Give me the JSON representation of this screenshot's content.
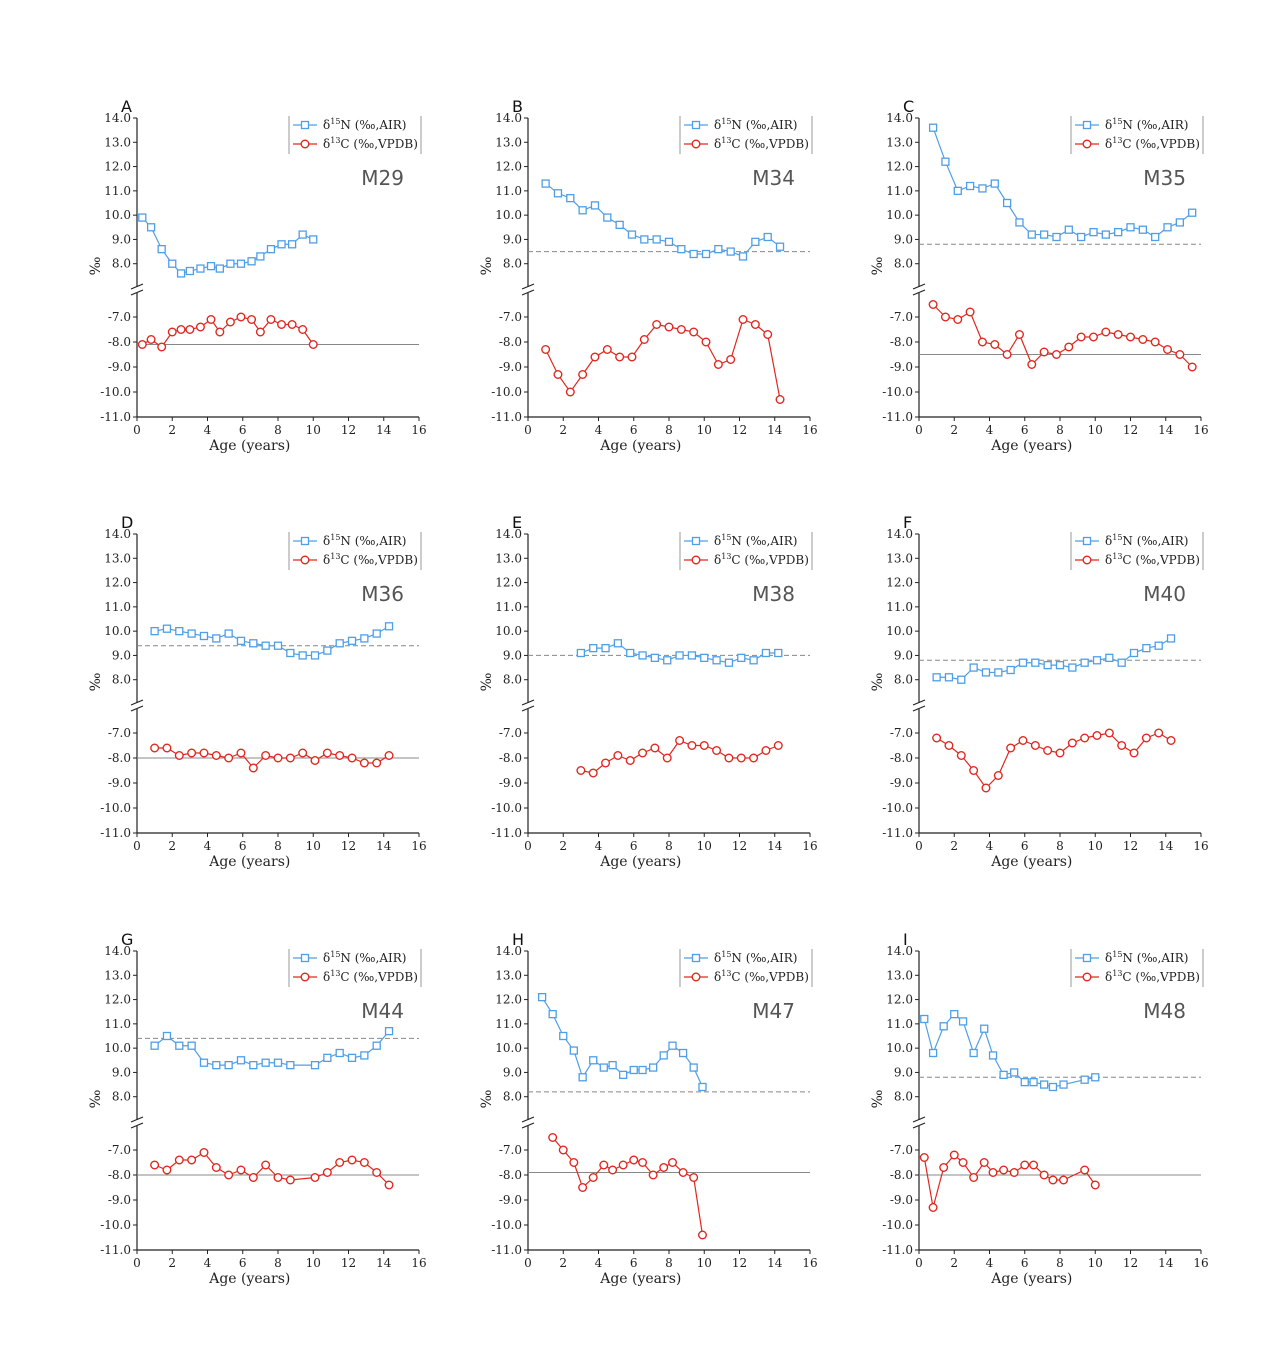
{
  "common": {
    "xlabel": "Age (years)",
    "ylabel": "‰",
    "xlim": [
      0,
      16
    ],
    "xticks": [
      "0",
      "2",
      "4",
      "6",
      "8",
      "10",
      "12",
      "14",
      "16"
    ],
    "ylim_upper": [
      7,
      14
    ],
    "yticks_upper": [
      "14.0",
      "13.0",
      "12.0",
      "11.0",
      "10.0",
      "9.0",
      "8.0"
    ],
    "ylim_lower": [
      -11,
      -6
    ],
    "yticks_lower": [
      "-7.0",
      "-8.0",
      "-9.0",
      "-10.0",
      "-11.0"
    ],
    "legend": {
      "n_prefix": "δ",
      "n_sup": "15",
      "n_text": "N (‰,AIR)",
      "c_prefix": "δ",
      "c_sup": "13",
      "c_text": "C (‰,VPDB)"
    },
    "colors": {
      "n": "#4f9ee8",
      "c": "#e0271f",
      "axis": "#222222",
      "ref": "#888888"
    }
  },
  "chart_data": [
    {
      "type": "line",
      "letter": "A",
      "specimen": "M29",
      "n_ref": null,
      "c_ref": -8.1,
      "n_ref_style": "solid",
      "c_ref_style": "solid",
      "n_series": {
        "name": "δ15N (‰,AIR)",
        "x": [
          0.3,
          0.8,
          1.4,
          2.0,
          2.5,
          3.0,
          3.6,
          4.2,
          4.7,
          5.3,
          5.9,
          6.5,
          7.0,
          7.6,
          8.2,
          8.8,
          9.4,
          10.0
        ],
        "y": [
          9.9,
          9.5,
          8.6,
          8.0,
          7.6,
          7.7,
          7.8,
          7.9,
          7.8,
          8.0,
          8.0,
          8.1,
          8.3,
          8.6,
          8.8,
          8.8,
          9.2,
          9.0
        ]
      },
      "c_series": {
        "name": "δ13C (‰,VPDB)",
        "x": [
          0.3,
          0.8,
          1.4,
          2.0,
          2.5,
          3.0,
          3.6,
          4.2,
          4.7,
          5.3,
          5.9,
          6.5,
          7.0,
          7.6,
          8.2,
          8.8,
          9.4,
          10.0
        ],
        "y": [
          -8.1,
          -7.9,
          -8.2,
          -7.6,
          -7.5,
          -7.5,
          -7.4,
          -7.1,
          -7.6,
          -7.2,
          -7.0,
          -7.1,
          -7.6,
          -7.1,
          -7.3,
          -7.3,
          -7.5,
          -8.1
        ]
      }
    },
    {
      "type": "line",
      "letter": "B",
      "specimen": "M34",
      "n_ref": 8.5,
      "c_ref": null,
      "n_ref_style": "dashed",
      "c_ref_style": "dashed",
      "n_series": {
        "name": "δ15N (‰,AIR)",
        "x": [
          1.0,
          1.7,
          2.4,
          3.1,
          3.8,
          4.5,
          5.2,
          5.9,
          6.6,
          7.3,
          8.0,
          8.7,
          9.4,
          10.1,
          10.8,
          11.5,
          12.2,
          12.9,
          13.6,
          14.3
        ],
        "y": [
          11.3,
          10.9,
          10.7,
          10.2,
          10.4,
          9.9,
          9.6,
          9.2,
          9.0,
          9.0,
          8.9,
          8.6,
          8.4,
          8.4,
          8.6,
          8.5,
          8.3,
          8.9,
          9.1,
          8.7
        ]
      },
      "c_series": {
        "name": "δ13C (‰,VPDB)",
        "x": [
          1.0,
          1.7,
          2.4,
          3.1,
          3.8,
          4.5,
          5.2,
          5.9,
          6.6,
          7.3,
          8.0,
          8.7,
          9.4,
          10.1,
          10.8,
          11.5,
          12.2,
          12.9,
          13.6,
          14.3
        ],
        "y": [
          -8.3,
          -9.3,
          -10.0,
          -9.3,
          -8.6,
          -8.3,
          -8.6,
          -8.6,
          -7.9,
          -7.3,
          -7.4,
          -7.5,
          -7.6,
          -8.0,
          -8.9,
          -8.7,
          -7.1,
          -7.3,
          -7.7,
          -10.3
        ]
      }
    },
    {
      "type": "line",
      "letter": "C",
      "specimen": "M35",
      "n_ref": 8.8,
      "c_ref": -8.5,
      "n_ref_style": "dashed",
      "c_ref_style": "solid",
      "n_series": {
        "name": "δ15N (‰,AIR)",
        "x": [
          0.8,
          1.5,
          2.2,
          2.9,
          3.6,
          4.3,
          5.0,
          5.7,
          6.4,
          7.1,
          7.8,
          8.5,
          9.2,
          9.9,
          10.6,
          11.3,
          12.0,
          12.7,
          13.4,
          14.1,
          14.8,
          15.5
        ],
        "y": [
          13.6,
          12.2,
          11.0,
          11.2,
          11.1,
          11.3,
          10.5,
          9.7,
          9.2,
          9.2,
          9.1,
          9.4,
          9.1,
          9.3,
          9.2,
          9.3,
          9.5,
          9.4,
          9.1,
          9.5,
          9.7,
          10.1
        ]
      },
      "c_series": {
        "name": "δ13C (‰,VPDB)",
        "x": [
          0.8,
          1.5,
          2.2,
          2.9,
          3.6,
          4.3,
          5.0,
          5.7,
          6.4,
          7.1,
          7.8,
          8.5,
          9.2,
          9.9,
          10.6,
          11.3,
          12.0,
          12.7,
          13.4,
          14.1,
          14.8,
          15.5
        ],
        "y": [
          -6.5,
          -7.0,
          -7.1,
          -6.8,
          -8.0,
          -8.1,
          -8.5,
          -7.7,
          -8.9,
          -8.4,
          -8.5,
          -8.2,
          -7.8,
          -7.8,
          -7.6,
          -7.7,
          -7.8,
          -7.9,
          -8.0,
          -8.3,
          -8.5,
          -9.0
        ]
      }
    },
    {
      "type": "line",
      "letter": "D",
      "specimen": "M36",
      "n_ref": 9.4,
      "c_ref": -8.0,
      "n_ref_style": "dashed",
      "c_ref_style": "solid",
      "n_series": {
        "name": "δ15N (‰,AIR)",
        "x": [
          1.0,
          1.7,
          2.4,
          3.1,
          3.8,
          4.5,
          5.2,
          5.9,
          6.6,
          7.3,
          8.0,
          8.7,
          9.4,
          10.1,
          10.8,
          11.5,
          12.2,
          12.9,
          13.6,
          14.3
        ],
        "y": [
          10.0,
          10.1,
          10.0,
          9.9,
          9.8,
          9.7,
          9.9,
          9.6,
          9.5,
          9.4,
          9.4,
          9.1,
          9.0,
          9.0,
          9.2,
          9.5,
          9.6,
          9.7,
          9.9,
          10.2
        ]
      },
      "c_series": {
        "name": "δ13C (‰,VPDB)",
        "x": [
          1.0,
          1.7,
          2.4,
          3.1,
          3.8,
          4.5,
          5.2,
          5.9,
          6.6,
          7.3,
          8.0,
          8.7,
          9.4,
          10.1,
          10.8,
          11.5,
          12.2,
          12.9,
          13.6,
          14.3
        ],
        "y": [
          -7.6,
          -7.6,
          -7.9,
          -7.8,
          -7.8,
          -7.9,
          -8.0,
          -7.8,
          -8.4,
          -7.9,
          -8.0,
          -8.0,
          -7.8,
          -8.1,
          -7.8,
          -7.9,
          -8.0,
          -8.2,
          -8.2,
          -7.9
        ]
      }
    },
    {
      "type": "line",
      "letter": "E",
      "specimen": "M38",
      "n_ref": 9.0,
      "c_ref": null,
      "n_ref_style": "dashed",
      "c_ref_style": "dashed",
      "n_series": {
        "name": "δ15N (‰,AIR)",
        "x": [
          3.0,
          3.7,
          4.4,
          5.1,
          5.8,
          6.5,
          7.2,
          7.9,
          8.6,
          9.3,
          10.0,
          10.7,
          11.4,
          12.1,
          12.8,
          13.5,
          14.2
        ],
        "y": [
          9.1,
          9.3,
          9.3,
          9.5,
          9.1,
          9.0,
          8.9,
          8.8,
          9.0,
          9.0,
          8.9,
          8.8,
          8.7,
          8.9,
          8.8,
          9.1,
          9.1
        ]
      },
      "c_series": {
        "name": "δ13C (‰,VPDB)",
        "x": [
          3.0,
          3.7,
          4.4,
          5.1,
          5.8,
          6.5,
          7.2,
          7.9,
          8.6,
          9.3,
          10.0,
          10.7,
          11.4,
          12.1,
          12.8,
          13.5,
          14.2
        ],
        "y": [
          -8.5,
          -8.6,
          -8.2,
          -7.9,
          -8.1,
          -7.8,
          -7.6,
          -8.0,
          -7.3,
          -7.5,
          -7.5,
          -7.7,
          -8.0,
          -8.0,
          -8.0,
          -7.7,
          -7.5
        ]
      }
    },
    {
      "type": "line",
      "letter": "F",
      "specimen": "M40",
      "n_ref": 8.8,
      "c_ref": null,
      "n_ref_style": "dashed",
      "c_ref_style": "dashed",
      "n_series": {
        "name": "δ15N (‰,AIR)",
        "x": [
          1.0,
          1.7,
          2.4,
          3.1,
          3.8,
          4.5,
          5.2,
          5.9,
          6.6,
          7.3,
          8.0,
          8.7,
          9.4,
          10.1,
          10.8,
          11.5,
          12.2,
          12.9,
          13.6,
          14.3
        ],
        "y": [
          8.1,
          8.1,
          8.0,
          8.5,
          8.3,
          8.3,
          8.4,
          8.7,
          8.7,
          8.6,
          8.6,
          8.5,
          8.7,
          8.8,
          8.9,
          8.7,
          9.1,
          9.3,
          9.4,
          9.7
        ]
      },
      "c_series": {
        "name": "δ13C (‰,VPDB)",
        "x": [
          1.0,
          1.7,
          2.4,
          3.1,
          3.8,
          4.5,
          5.2,
          5.9,
          6.6,
          7.3,
          8.0,
          8.7,
          9.4,
          10.1,
          10.8,
          11.5,
          12.2,
          12.9,
          13.6,
          14.3
        ],
        "y": [
          -7.2,
          -7.5,
          -7.9,
          -8.5,
          -9.2,
          -8.7,
          -7.6,
          -7.3,
          -7.5,
          -7.7,
          -7.8,
          -7.4,
          -7.2,
          -7.1,
          -7.0,
          -7.5,
          -7.8,
          -7.2,
          -7.0,
          -7.3
        ]
      }
    },
    {
      "type": "line",
      "letter": "G",
      "specimen": "M44",
      "n_ref": 10.4,
      "c_ref": -8.0,
      "n_ref_style": "dashed",
      "c_ref_style": "solid",
      "n_series": {
        "name": "δ15N (‰,AIR)",
        "x": [
          1.0,
          1.7,
          2.4,
          3.1,
          3.8,
          4.5,
          5.2,
          5.9,
          6.6,
          7.3,
          8.0,
          8.7,
          10.1,
          10.8,
          11.5,
          12.2,
          12.9,
          13.6,
          14.3
        ],
        "y": [
          10.1,
          10.5,
          10.1,
          10.1,
          9.4,
          9.3,
          9.3,
          9.5,
          9.3,
          9.4,
          9.4,
          9.3,
          9.3,
          9.6,
          9.8,
          9.6,
          9.7,
          10.1,
          10.7
        ]
      },
      "c_series": {
        "name": "δ13C (‰,VPDB)",
        "x": [
          1.0,
          1.7,
          2.4,
          3.1,
          3.8,
          4.5,
          5.2,
          5.9,
          6.6,
          7.3,
          8.0,
          8.7,
          10.1,
          10.8,
          11.5,
          12.2,
          12.9,
          13.6,
          14.3
        ],
        "y": [
          -7.6,
          -7.8,
          -7.4,
          -7.4,
          -7.1,
          -7.7,
          -8.0,
          -7.8,
          -8.1,
          -7.6,
          -8.1,
          -8.2,
          -8.1,
          -7.9,
          -7.5,
          -7.4,
          -7.5,
          -7.9,
          -8.4
        ]
      }
    },
    {
      "type": "line",
      "letter": "H",
      "specimen": "M47",
      "n_ref": 8.2,
      "c_ref": -7.9,
      "n_ref_style": "dashed",
      "c_ref_style": "solid",
      "n_series": {
        "name": "δ15N (‰,AIR)",
        "x": [
          0.8,
          1.4,
          2.0,
          2.6,
          3.1,
          3.7,
          4.3,
          4.8,
          5.4,
          6.0,
          6.5,
          7.1,
          7.7,
          8.2,
          8.8,
          9.4,
          9.9
        ],
        "y": [
          12.1,
          11.4,
          10.5,
          9.9,
          8.8,
          9.5,
          9.2,
          9.3,
          8.9,
          9.1,
          9.1,
          9.2,
          9.7,
          10.1,
          9.8,
          9.2,
          8.4
        ]
      },
      "c_series": {
        "name": "δ13C (‰,VPDB)",
        "x": [
          1.4,
          2.0,
          2.6,
          3.1,
          3.7,
          4.3,
          4.8,
          5.4,
          6.0,
          6.5,
          7.1,
          7.7,
          8.2,
          8.8,
          9.4,
          9.9
        ],
        "y": [
          -6.5,
          -7.0,
          -7.5,
          -8.5,
          -8.1,
          -7.6,
          -7.8,
          -7.6,
          -7.4,
          -7.5,
          -8.0,
          -7.7,
          -7.5,
          -7.9,
          -8.1,
          -10.4
        ]
      }
    },
    {
      "type": "line",
      "letter": "I",
      "specimen": "M48",
      "n_ref": 8.8,
      "c_ref": -8.0,
      "n_ref_style": "dashed",
      "c_ref_style": "solid",
      "n_series": {
        "name": "δ15N (‰,AIR)",
        "x": [
          0.3,
          0.8,
          1.4,
          2.0,
          2.5,
          3.1,
          3.7,
          4.2,
          4.8,
          5.4,
          6.0,
          6.5,
          7.1,
          7.6,
          8.2,
          9.4,
          10.0
        ],
        "y": [
          11.2,
          9.8,
          10.9,
          11.4,
          11.1,
          9.8,
          10.8,
          9.7,
          8.9,
          9.0,
          8.6,
          8.6,
          8.5,
          8.4,
          8.5,
          8.7,
          8.8
        ]
      },
      "c_series": {
        "name": "δ13C (‰,VPDB)",
        "x": [
          0.3,
          0.8,
          1.4,
          2.0,
          2.5,
          3.1,
          3.7,
          4.2,
          4.8,
          5.4,
          6.0,
          6.5,
          7.1,
          7.6,
          8.2,
          9.4,
          10.0
        ],
        "y": [
          -7.3,
          -9.3,
          -7.7,
          -7.2,
          -7.5,
          -8.1,
          -7.5,
          -7.9,
          -7.8,
          -7.9,
          -7.6,
          -7.6,
          -8.0,
          -8.2,
          -8.2,
          -7.8,
          -8.4
        ]
      }
    }
  ]
}
